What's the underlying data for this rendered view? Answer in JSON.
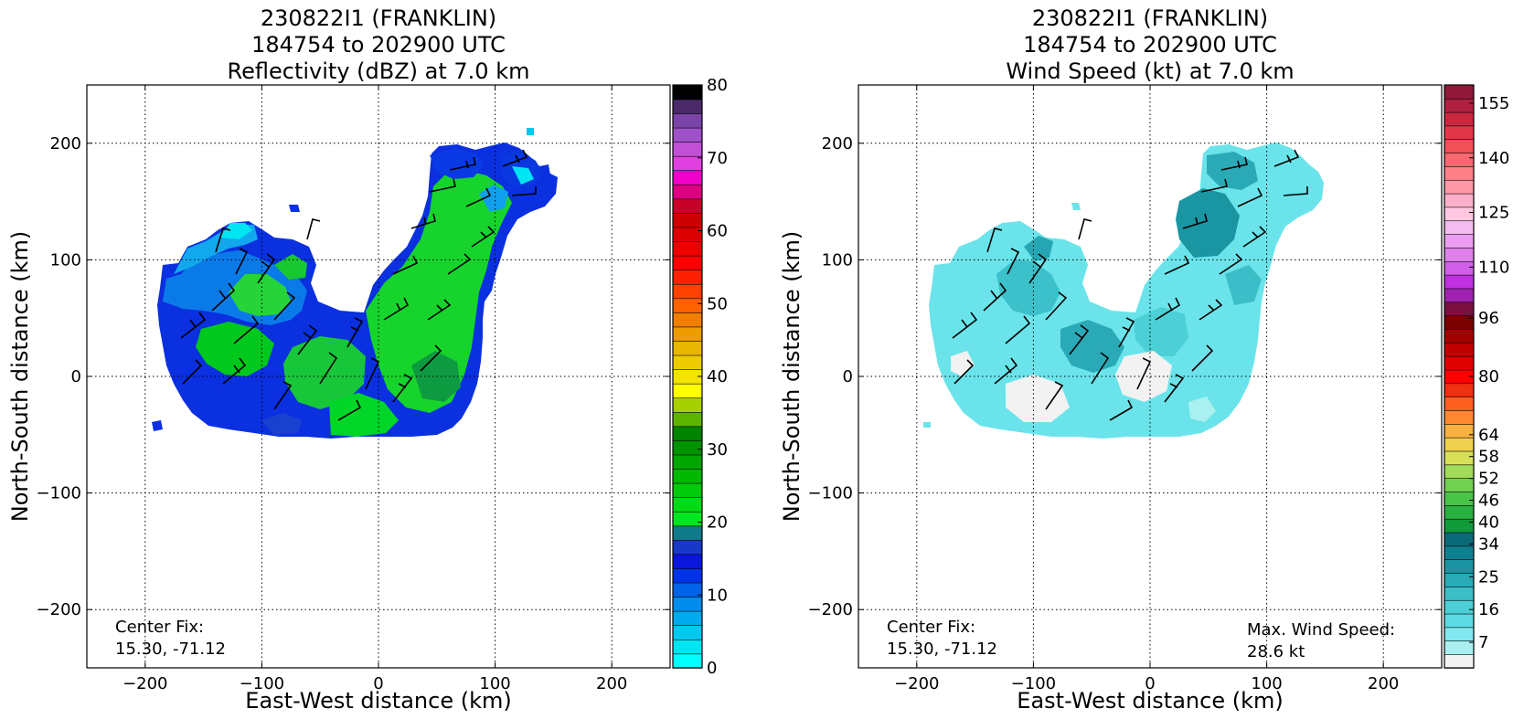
{
  "chart_data": [
    {
      "type": "heatmap",
      "title_lines": [
        "230822I1 (FRANKLIN)",
        "184754 to 202900 UTC",
        "Reflectivity (dBZ) at 7.0 km"
      ],
      "xlabel": "East-West distance (km)",
      "ylabel": "North-South distance (km)",
      "xlim": [
        -250,
        250
      ],
      "ylim": [
        -250,
        250
      ],
      "xticks": [
        -200,
        -100,
        0,
        100,
        200
      ],
      "yticks": [
        -200,
        -100,
        0,
        100,
        200
      ],
      "grid": true,
      "colorbar": {
        "min": 0,
        "max": 80,
        "tick_values": [
          0,
          10,
          20,
          30,
          40,
          50,
          60,
          70,
          80
        ],
        "tick_labels": [
          "0",
          "10",
          "20",
          "30",
          "40",
          "50",
          "60",
          "70",
          "80"
        ],
        "colors": [
          "#00ffff",
          "#00e5f2",
          "#00c8ef",
          "#00aaee",
          "#008cec",
          "#0064e8",
          "#0032e6",
          "#0a16dc",
          "#1838c8",
          "#0f7a8a",
          "#00e61e",
          "#00dc14",
          "#00ca0a",
          "#00b800",
          "#00a600",
          "#009400",
          "#008300",
          "#5cb400",
          "#a8d000",
          "#ffff00",
          "#f2e400",
          "#eccc00",
          "#e8b600",
          "#ec9c00",
          "#f27e00",
          "#ff6200",
          "#ff4200",
          "#ff2000",
          "#ff0000",
          "#ee0000",
          "#dc0000",
          "#cc0000",
          "#c8002a",
          "#dc0080",
          "#f000c8",
          "#e040e0",
          "#c050d6",
          "#a050c8",
          "#7a44a8",
          "#4a2a68",
          "#000000"
        ]
      },
      "annotation_left": [
        "Center Fix:",
        "15.30, -71.12"
      ]
    },
    {
      "type": "heatmap",
      "title_lines": [
        "230822I1 (FRANKLIN)",
        "184754 to 202900 UTC",
        "Wind Speed (kt) at 7.0 km"
      ],
      "xlabel": "East-West distance (km)",
      "ylabel": "North-South distance (km)",
      "xlim": [
        -250,
        250
      ],
      "ylim": [
        -250,
        250
      ],
      "xticks": [
        -200,
        -100,
        0,
        100,
        200
      ],
      "yticks": [
        -200,
        -100,
        0,
        100,
        200
      ],
      "grid": true,
      "colorbar": {
        "min": 0,
        "max": 160,
        "tick_values": [
          7,
          16,
          25,
          34,
          40,
          46,
          52,
          58,
          64,
          80,
          96,
          110,
          125,
          140,
          155
        ],
        "tick_labels": [
          "7",
          "16",
          "25",
          "34",
          "40",
          "46",
          "52",
          "58",
          "64",
          "80",
          "96",
          "110",
          "125",
          "140",
          "155"
        ],
        "colors": [
          "#f2f2f2",
          "#aaf0f0",
          "#80e8ee",
          "#5cdce2",
          "#4ccfd6",
          "#3cbec8",
          "#2aaab6",
          "#1a95a2",
          "#108090",
          "#0a6a78",
          "#109a3a",
          "#28b040",
          "#48c448",
          "#70d050",
          "#a0dc58",
          "#d8e058",
          "#f0d050",
          "#f8b040",
          "#ff8a30",
          "#ff6020",
          "#f03010",
          "#ff0000",
          "#e00000",
          "#c00000",
          "#a00000",
          "#7a0000",
          "#7a1040",
          "#a020b0",
          "#c030e0",
          "#d060e8",
          "#e080ec",
          "#ec9ef0",
          "#f4bcf0",
          "#ffc8e0",
          "#ffb0c8",
          "#ff98a8",
          "#ff8088",
          "#f86870",
          "#f05058",
          "#e03848",
          "#c82840",
          "#b02040",
          "#901838"
        ]
      },
      "annotation_left": [
        "Center Fix:",
        "15.30, -71.12"
      ],
      "annotation_right": [
        "Max. Wind Speed:",
        "28.6 kt"
      ]
    }
  ]
}
